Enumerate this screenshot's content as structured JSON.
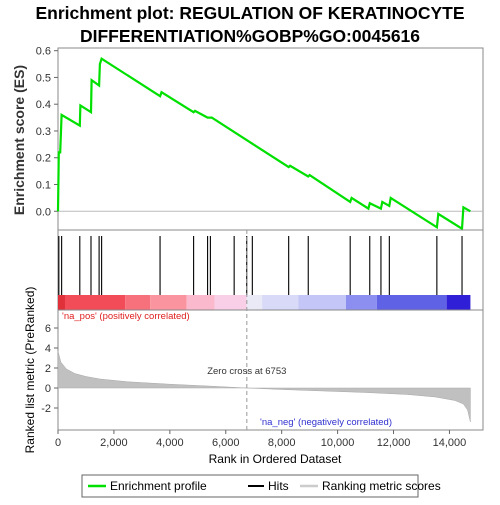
{
  "chart_data": {
    "type": "line",
    "title_lines": [
      "Enrichment plot: REGULATION OF KERATINOCYTE",
      "DIFFERENTIATION%GOBP%GO:0045616"
    ],
    "xlabel": "Rank in Ordered Dataset",
    "x_ticks": [
      "0",
      "2,000",
      "4,000",
      "6,000",
      "8,000",
      "10,000",
      "12,000",
      "14,000"
    ],
    "xlim": [
      0,
      15200
    ],
    "dataset_size": 14750,
    "es_panel": {
      "ylabel": "Enrichment score (ES)",
      "ylim": [
        -0.07,
        0.61
      ],
      "y_ticks": [
        "0.6",
        "0.5",
        "0.4",
        "0.3",
        "0.2",
        "0.1",
        "0.0"
      ],
      "y_tick_values": [
        0.6,
        0.5,
        0.4,
        0.3,
        0.2,
        0.1,
        0.0
      ],
      "series_name": "Enrichment profile",
      "color": "#00e000",
      "points": [
        [
          0,
          0.0
        ],
        [
          30,
          0.22
        ],
        [
          80,
          0.22
        ],
        [
          130,
          0.36
        ],
        [
          780,
          0.32
        ],
        [
          800,
          0.395
        ],
        [
          1180,
          0.37
        ],
        [
          1200,
          0.49
        ],
        [
          1470,
          0.47
        ],
        [
          1500,
          0.55
        ],
        [
          1560,
          0.57
        ],
        [
          3650,
          0.43
        ],
        [
          3700,
          0.445
        ],
        [
          4850,
          0.37
        ],
        [
          4900,
          0.375
        ],
        [
          5350,
          0.35
        ],
        [
          5400,
          0.35
        ],
        [
          5500,
          0.35
        ],
        [
          8250,
          0.165
        ],
        [
          8300,
          0.17
        ],
        [
          8950,
          0.13
        ],
        [
          9000,
          0.135
        ],
        [
          10450,
          0.035
        ],
        [
          10500,
          0.05
        ],
        [
          11100,
          0.01
        ],
        [
          11150,
          0.03
        ],
        [
          11550,
          0.01
        ],
        [
          11600,
          0.035
        ],
        [
          11850,
          0.02
        ],
        [
          11900,
          0.05
        ],
        [
          13550,
          -0.06
        ],
        [
          13600,
          -0.01
        ],
        [
          14450,
          -0.065
        ],
        [
          14500,
          0.015
        ],
        [
          14750,
          0.0
        ]
      ]
    },
    "hits": [
      30,
      130,
      780,
      1180,
      1470,
      1560,
      3650,
      4850,
      5350,
      5450,
      6300,
      6750,
      6950,
      8250,
      8950,
      10450,
      11150,
      11550,
      11850,
      13550,
      14450
    ],
    "ranked_panel": {
      "ylabel": "Ranked list metric (PreRanked)",
      "ylim": [
        -4.2,
        7.8
      ],
      "y_ticks": [
        "6",
        "4",
        "2",
        "0",
        "-2"
      ],
      "y_tick_values": [
        6,
        4,
        2,
        0,
        -2
      ],
      "zero_cross_label": "Zero cross at 6753",
      "zero_cross": 6753,
      "pos_label": "'na_pos' (positively correlated)",
      "neg_label": "'na_neg' (negatively correlated)",
      "profile": [
        [
          0,
          3.7
        ],
        [
          100,
          2.6
        ],
        [
          300,
          1.9
        ],
        [
          600,
          1.45
        ],
        [
          1000,
          1.15
        ],
        [
          1500,
          0.9
        ],
        [
          2500,
          0.62
        ],
        [
          4000,
          0.38
        ],
        [
          5500,
          0.18
        ],
        [
          6753,
          0.0
        ],
        [
          8000,
          -0.15
        ],
        [
          9500,
          -0.3
        ],
        [
          11000,
          -0.45
        ],
        [
          12500,
          -0.65
        ],
        [
          13500,
          -0.9
        ],
        [
          14200,
          -1.25
        ],
        [
          14500,
          -1.6
        ],
        [
          14650,
          -2.2
        ],
        [
          14730,
          -3.2
        ],
        [
          14750,
          -3.4
        ]
      ]
    },
    "heat_bar": {
      "segments": [
        {
          "from": 0,
          "to": 250,
          "color": "#e0303a"
        },
        {
          "from": 250,
          "to": 2400,
          "color": "#f24c58"
        },
        {
          "from": 2400,
          "to": 3300,
          "color": "#f7717c"
        },
        {
          "from": 3300,
          "to": 4600,
          "color": "#fa95a0"
        },
        {
          "from": 4600,
          "to": 5600,
          "color": "#fbb9cd"
        },
        {
          "from": 5600,
          "to": 6750,
          "color": "#f8cfe6"
        },
        {
          "from": 6750,
          "to": 7300,
          "color": "#eaeaf7"
        },
        {
          "from": 7300,
          "to": 8600,
          "color": "#d9daf7"
        },
        {
          "from": 8600,
          "to": 10300,
          "color": "#c3c6f6"
        },
        {
          "from": 10300,
          "to": 11400,
          "color": "#8d8ff0"
        },
        {
          "from": 11400,
          "to": 13900,
          "color": "#6062e6"
        },
        {
          "from": 13900,
          "to": 14750,
          "color": "#2f1fd6"
        }
      ]
    },
    "legend": [
      {
        "label": "Enrichment profile",
        "color": "#00e000"
      },
      {
        "label": "Hits",
        "color": "#000000"
      },
      {
        "label": "Ranking metric scores",
        "color": "#cccccc"
      }
    ]
  }
}
